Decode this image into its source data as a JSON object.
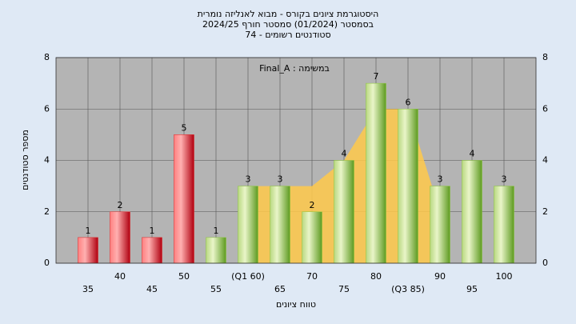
{
  "chart_data": {
    "type": "bar",
    "title": [
      "היסטוגרמת ציונים בקורס - מבוא לאנליזה נומרית",
      "בסמסטר (01/2024) סמסטר חורף 2024/25",
      "סטודנטים רשומים - 74"
    ],
    "annotation": "במשימה : Final_A",
    "x_label": "טווח ציונים",
    "y_label": "מספר סטודנטים",
    "categories": [
      "35",
      "40",
      "45",
      "50",
      "55",
      "(Q1 60)",
      "65",
      "70",
      "75",
      "80",
      "(Q3 85)",
      "90",
      "95",
      "100"
    ],
    "values": [
      1,
      2,
      1,
      5,
      1,
      3,
      3,
      2,
      4,
      7,
      6,
      3,
      4,
      3
    ],
    "colors": [
      "#e02020",
      "#e02020",
      "#e02020",
      "#e02020",
      "#8cc63e",
      "#8cc63e",
      "#8cc63e",
      "#8cc63e",
      "#8cc63e",
      "#8cc63e",
      "#8cc63e",
      "#8cc63e",
      "#8cc63e",
      "#8cc63e"
    ],
    "band": {
      "values": [
        null,
        null,
        null,
        null,
        null,
        3,
        3,
        3,
        4,
        6,
        6,
        2,
        null,
        null
      ],
      "color": "#ffc94a"
    },
    "ylim": [
      0,
      8
    ],
    "yticks": [
      0,
      2,
      4,
      6,
      8
    ],
    "grid": true
  }
}
